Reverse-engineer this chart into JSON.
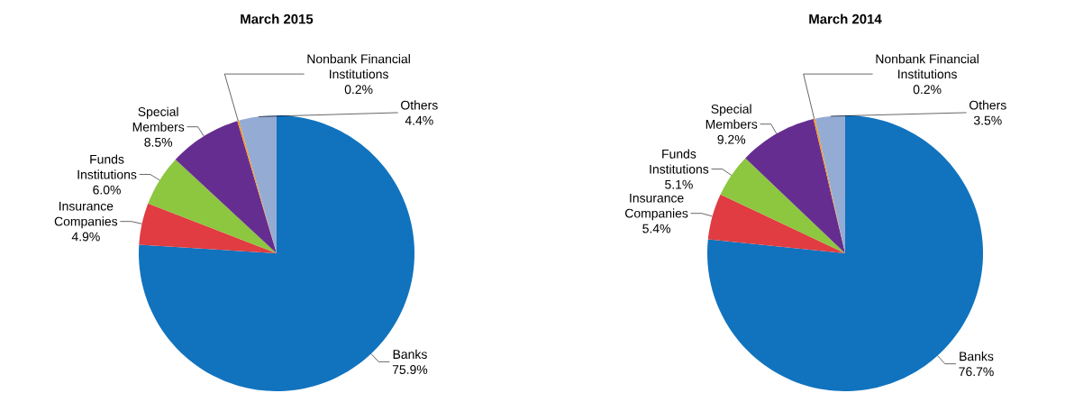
{
  "chart_data": [
    {
      "type": "pie",
      "title": "March 2015",
      "categories": [
        "Banks",
        "Insurance Companies",
        "Funds Institutions",
        "Special Members",
        "Nonbank Financial Institutions",
        "Others"
      ],
      "values": [
        75.9,
        4.9,
        6.0,
        8.5,
        0.2,
        4.4
      ],
      "colors": [
        "#1173be",
        "#e03c41",
        "#8dc63f",
        "#662d91",
        "#f7941d",
        "#94abd4"
      ],
      "value_labels": [
        "75.9%",
        "4.9%",
        "6.0%",
        "8.5%",
        "0.2%",
        "4.4%"
      ]
    },
    {
      "type": "pie",
      "title": "March 2014",
      "categories": [
        "Banks",
        "Insurance Companies",
        "Funds Institutions",
        "Special Members",
        "Nonbank Financial Institutions",
        "Others"
      ],
      "values": [
        76.7,
        5.4,
        5.1,
        9.2,
        0.2,
        3.5
      ],
      "colors": [
        "#1173be",
        "#e03c41",
        "#8dc63f",
        "#662d91",
        "#f7941d",
        "#94abd4"
      ],
      "value_labels": [
        "76.7%",
        "5.4%",
        "5.1%",
        "9.2%",
        "0.2%",
        "3.5%"
      ]
    }
  ]
}
